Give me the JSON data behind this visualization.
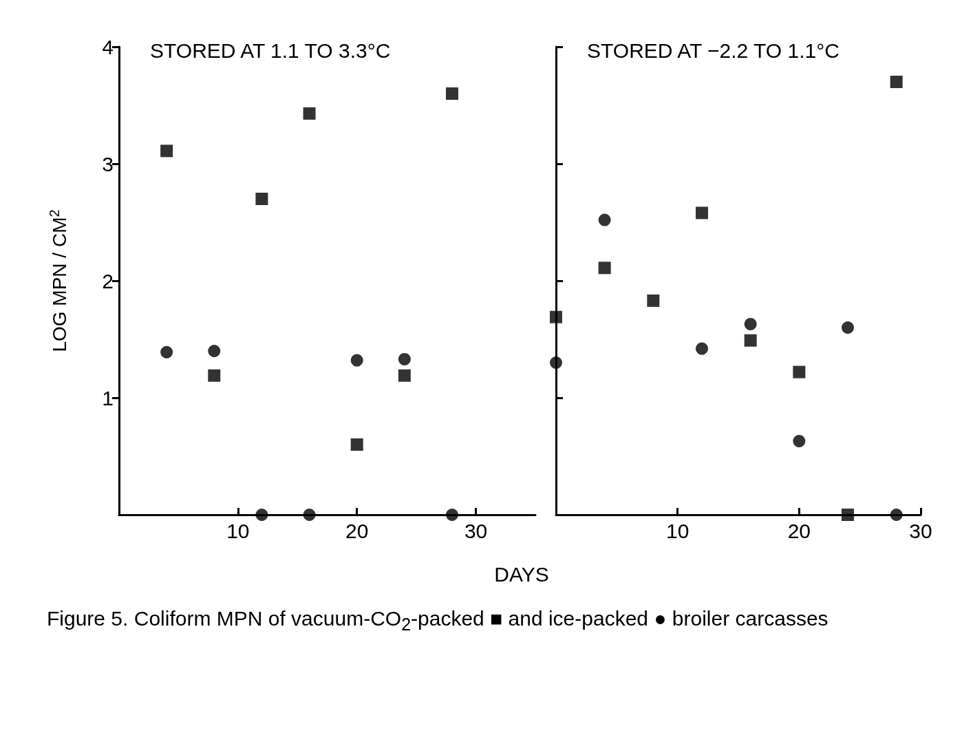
{
  "chart_data": [
    {
      "type": "scatter",
      "title": "STORED AT 1.1 TO 3.3°C",
      "xlabel": "DAYS",
      "ylabel": "LOG MPN / CM$^{2}$",
      "annotations": [
        "Figure 5. Coliform MPN of vacuum-CO$_{2}$-packed ■ and ice-packed ● broiler carcasses"
      ],
      "xlim": [
        0,
        35
      ],
      "xticks": [
        10,
        20,
        30
      ],
      "ylim": [
        0,
        4
      ],
      "yticks": [
        1,
        2,
        3,
        4
      ],
      "grid": false,
      "series": [
        {
          "color": "#000000",
          "marker": "square",
          "x": [
            4,
            8,
            12,
            16,
            20,
            24,
            28
          ],
          "values": [
            3.11,
            1.19,
            2.7,
            3.43,
            0.6,
            1.19,
            3.6
          ]
        },
        {
          "color": "#000000",
          "marker": "circle",
          "x": [
            4,
            8,
            12,
            16,
            20,
            24,
            28
          ],
          "values": [
            1.39,
            1.4,
            0,
            0,
            1.32,
            1.33,
            0
          ]
        }
      ]
    },
    {
      "type": "scatter",
      "title": "STORED AT −2.2 TO 1.1°C",
      "xlim": [
        0,
        30
      ],
      "xticks": [
        10,
        20,
        30
      ],
      "ylim": [
        0,
        4
      ],
      "yticks": [
        1,
        2,
        3,
        4
      ],
      "tick_labels": "x",
      "grid": false,
      "series": [
        {
          "color": "#000000",
          "marker": "square",
          "x": [
            0,
            4,
            8,
            12,
            16,
            20,
            24,
            28
          ],
          "values": [
            1.69,
            2.11,
            1.83,
            2.58,
            1.49,
            1.22,
            0,
            3.7
          ]
        },
        {
          "color": "#000000",
          "marker": "circle",
          "x": [
            0,
            4,
            12,
            16,
            20,
            24,
            28
          ],
          "values": [
            1.3,
            2.52,
            1.42,
            1.63,
            0.63,
            1.6,
            0
          ]
        }
      ]
    }
  ]
}
